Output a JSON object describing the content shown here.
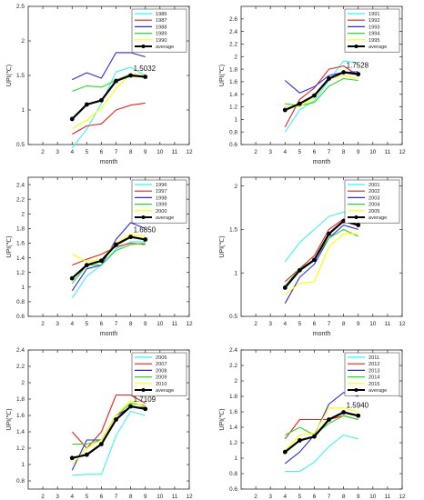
{
  "chart_data": [
    {
      "type": "line",
      "xlabel": "month",
      "ylabel": "UPI(℃)",
      "xlim": [
        1,
        12
      ],
      "ylim": [
        0.5,
        2.5
      ],
      "xticks": [
        2,
        3,
        4,
        5,
        6,
        7,
        8,
        9,
        10,
        11,
        12
      ],
      "yticks": [
        0.5,
        1,
        1.5,
        2,
        2.5
      ],
      "x": [
        4,
        5,
        6,
        7,
        8,
        9
      ],
      "series": [
        {
          "name": "1986",
          "color": "#3ff2f2",
          "values": [
            0.45,
            0.72,
            1.1,
            1.55,
            1.62,
            1.5
          ]
        },
        {
          "name": "1987",
          "color": "#e3231b",
          "values": [
            0.65,
            0.77,
            0.8,
            1.0,
            1.07,
            1.1
          ]
        },
        {
          "name": "1988",
          "color": "#2a2ad6",
          "values": [
            1.44,
            1.54,
            1.46,
            1.83,
            1.83,
            1.77
          ]
        },
        {
          "name": "1989",
          "color": "#2ed62e",
          "values": [
            1.27,
            1.35,
            1.33,
            1.43,
            1.52,
            1.47
          ]
        },
        {
          "name": "1990",
          "color": "#ffff00",
          "values": [
            0.73,
            0.85,
            1.03,
            1.31,
            1.52,
            1.5
          ]
        },
        {
          "name": "average",
          "color": "#000000",
          "values": [
            0.87,
            1.08,
            1.14,
            1.42,
            1.5,
            1.48
          ]
        }
      ],
      "annotation": {
        "text": "1.5032",
        "x": 8,
        "y": 1.5032
      }
    },
    {
      "type": "line",
      "xlabel": "month",
      "ylabel": "UPI(℃)",
      "xlim": [
        1,
        12
      ],
      "ylim": [
        0.6,
        2.8
      ],
      "xticks": [
        2,
        3,
        4,
        5,
        6,
        7,
        8,
        9,
        10,
        11,
        12
      ],
      "yticks": [
        0.6,
        0.8,
        1,
        1.2,
        1.4,
        1.6,
        1.8,
        2,
        2.2,
        2.4,
        2.6
      ],
      "x": [
        4,
        5,
        6,
        7,
        8,
        9
      ],
      "series": [
        {
          "name": "1991",
          "color": "#3ff2f2",
          "values": [
            0.8,
            1.15,
            1.3,
            1.62,
            1.93,
            1.9
          ]
        },
        {
          "name": "1992",
          "color": "#e3231b",
          "values": [
            0.88,
            1.32,
            1.5,
            1.8,
            1.85,
            1.7
          ]
        },
        {
          "name": "1993",
          "color": "#2a2ad6",
          "values": [
            1.62,
            1.42,
            1.52,
            1.7,
            1.75,
            1.76
          ]
        },
        {
          "name": "1994",
          "color": "#2ed62e",
          "values": [
            1.25,
            1.22,
            1.27,
            1.53,
            1.65,
            1.62
          ]
        },
        {
          "name": "1995",
          "color": "#ffff00",
          "values": [
            1.2,
            1.2,
            1.35,
            1.65,
            1.7,
            1.65
          ]
        },
        {
          "name": "average",
          "color": "#000000",
          "values": [
            1.15,
            1.25,
            1.38,
            1.65,
            1.75,
            1.72
          ]
        }
      ],
      "annotation": {
        "text": "1.7528",
        "x": 8,
        "y": 1.7528
      }
    },
    {
      "type": "line",
      "xlabel": "month",
      "ylabel": "UPI(℃)",
      "xlim": [
        1,
        12
      ],
      "ylim": [
        0.6,
        2.5
      ],
      "xticks": [
        2,
        3,
        4,
        5,
        6,
        7,
        8,
        9,
        10,
        11,
        12
      ],
      "yticks": [
        0.6,
        0.8,
        1,
        1.2,
        1.4,
        1.6,
        1.8,
        2,
        2.2,
        2.4
      ],
      "x": [
        4,
        5,
        6,
        7,
        8,
        9
      ],
      "series": [
        {
          "name": "1996",
          "color": "#3ff2f2",
          "values": [
            0.85,
            1.15,
            1.3,
            1.52,
            1.62,
            1.62
          ]
        },
        {
          "name": "1997",
          "color": "#e3231b",
          "values": [
            1.3,
            1.38,
            1.45,
            1.55,
            1.6,
            1.58
          ]
        },
        {
          "name": "1998",
          "color": "#2a2ad6",
          "values": [
            0.95,
            1.25,
            1.3,
            1.65,
            1.88,
            1.8
          ]
        },
        {
          "name": "1999",
          "color": "#2ed62e",
          "values": [
            1.05,
            1.3,
            1.3,
            1.5,
            1.58,
            1.6
          ]
        },
        {
          "name": "2000",
          "color": "#ffff00",
          "values": [
            1.45,
            1.35,
            1.38,
            1.6,
            1.72,
            1.7
          ]
        },
        {
          "name": "average",
          "color": "#000000",
          "values": [
            1.12,
            1.3,
            1.36,
            1.58,
            1.685,
            1.65
          ]
        }
      ],
      "annotation": {
        "text": "1.6850",
        "x": 8,
        "y": 1.685
      }
    },
    {
      "type": "line",
      "xlabel": "month",
      "ylabel": "UPI(℃)",
      "xlim": [
        1,
        12
      ],
      "ylim": [
        0.5,
        2.1
      ],
      "xticks": [
        2,
        3,
        4,
        5,
        6,
        7,
        8,
        9,
        10,
        11,
        12
      ],
      "yticks": [
        0.5,
        1,
        1.5,
        2
      ],
      "x": [
        4,
        5,
        6,
        7,
        8,
        9
      ],
      "series": [
        {
          "name": "2001",
          "color": "#3ff2f2",
          "values": [
            1.13,
            1.35,
            1.5,
            1.65,
            1.7,
            1.65
          ]
        },
        {
          "name": "2002",
          "color": "#e3231b",
          "values": [
            0.9,
            1.05,
            1.2,
            1.5,
            1.62,
            1.55
          ]
        },
        {
          "name": "2003",
          "color": "#2a2ad6",
          "values": [
            0.65,
            0.95,
            1.1,
            1.4,
            1.55,
            1.5
          ]
        },
        {
          "name": "2004",
          "color": "#2ed62e",
          "values": [
            0.85,
            1.05,
            1.15,
            1.4,
            1.5,
            1.42
          ]
        },
        {
          "name": "2005",
          "color": "#ffff00",
          "values": [
            0.75,
            0.88,
            0.9,
            1.3,
            1.45,
            1.45
          ]
        },
        {
          "name": "average",
          "color": "#000000",
          "values": [
            0.83,
            1.03,
            1.15,
            1.45,
            1.5965,
            1.55
          ]
        }
      ],
      "annotation": {
        "text": "1.5965",
        "x": 8,
        "y": 1.5965
      }
    },
    {
      "type": "line",
      "xlabel": "month",
      "ylabel": "UPI(℃)",
      "xlim": [
        1,
        12
      ],
      "ylim": [
        0.7,
        2.4
      ],
      "xticks": [
        2,
        3,
        4,
        5,
        6,
        7,
        8,
        9,
        10,
        11,
        12
      ],
      "yticks": [
        0.8,
        1,
        1.2,
        1.4,
        1.6,
        1.8,
        2,
        2.2,
        2.4
      ],
      "x": [
        4,
        5,
        6,
        7,
        8,
        9
      ],
      "series": [
        {
          "name": "2006",
          "color": "#3ff2f2",
          "values": [
            0.87,
            0.88,
            0.88,
            1.35,
            1.65,
            1.6
          ]
        },
        {
          "name": "2007",
          "color": "#e3231b",
          "values": [
            1.4,
            1.2,
            1.4,
            1.85,
            1.85,
            1.75
          ]
        },
        {
          "name": "2008",
          "color": "#2a2ad6",
          "values": [
            0.93,
            1.3,
            1.3,
            1.6,
            1.7,
            1.7
          ]
        },
        {
          "name": "2009",
          "color": "#2ed62e",
          "values": [
            1.25,
            1.25,
            1.3,
            1.6,
            1.75,
            1.72
          ]
        },
        {
          "name": "2010",
          "color": "#ffff00",
          "values": [
            1.0,
            1.2,
            1.3,
            1.6,
            1.78,
            1.7
          ]
        },
        {
          "name": "average",
          "color": "#000000",
          "values": [
            1.08,
            1.12,
            1.25,
            1.55,
            1.7109,
            1.68
          ]
        }
      ],
      "annotation": {
        "text": "1.7109",
        "x": 8,
        "y": 1.7109
      }
    },
    {
      "type": "line",
      "xlabel": "month",
      "ylabel": "UPI(℃)",
      "xlim": [
        1,
        12
      ],
      "ylim": [
        0.6,
        2.4
      ],
      "xticks": [
        2,
        3,
        4,
        5,
        6,
        7,
        8,
        9,
        10,
        11,
        12
      ],
      "yticks": [
        0.6,
        0.8,
        1,
        1.2,
        1.4,
        1.6,
        1.8,
        2,
        2.2,
        2.4
      ],
      "x": [
        4,
        5,
        6,
        7,
        8,
        9
      ],
      "series": [
        {
          "name": "2011",
          "color": "#3ff2f2",
          "values": [
            0.83,
            0.83,
            0.95,
            1.15,
            1.3,
            1.25
          ]
        },
        {
          "name": "2012",
          "color": "#e3231b",
          "values": [
            1.25,
            1.5,
            1.5,
            1.5,
            1.55,
            1.5
          ]
        },
        {
          "name": "2013",
          "color": "#2a2ad6",
          "values": [
            0.93,
            1.08,
            1.3,
            1.7,
            1.85,
            1.8
          ]
        },
        {
          "name": "2014",
          "color": "#2ed62e",
          "values": [
            1.3,
            1.4,
            1.3,
            1.45,
            1.55,
            1.5
          ]
        },
        {
          "name": "2015",
          "color": "#ffff00",
          "values": [
            1.1,
            1.3,
            1.32,
            1.65,
            1.65,
            1.6
          ]
        },
        {
          "name": "average",
          "color": "#000000",
          "values": [
            1.08,
            1.23,
            1.28,
            1.5,
            1.594,
            1.55
          ]
        }
      ],
      "annotation": {
        "text": "1.5940",
        "x": 8,
        "y": 1.594
      }
    }
  ]
}
